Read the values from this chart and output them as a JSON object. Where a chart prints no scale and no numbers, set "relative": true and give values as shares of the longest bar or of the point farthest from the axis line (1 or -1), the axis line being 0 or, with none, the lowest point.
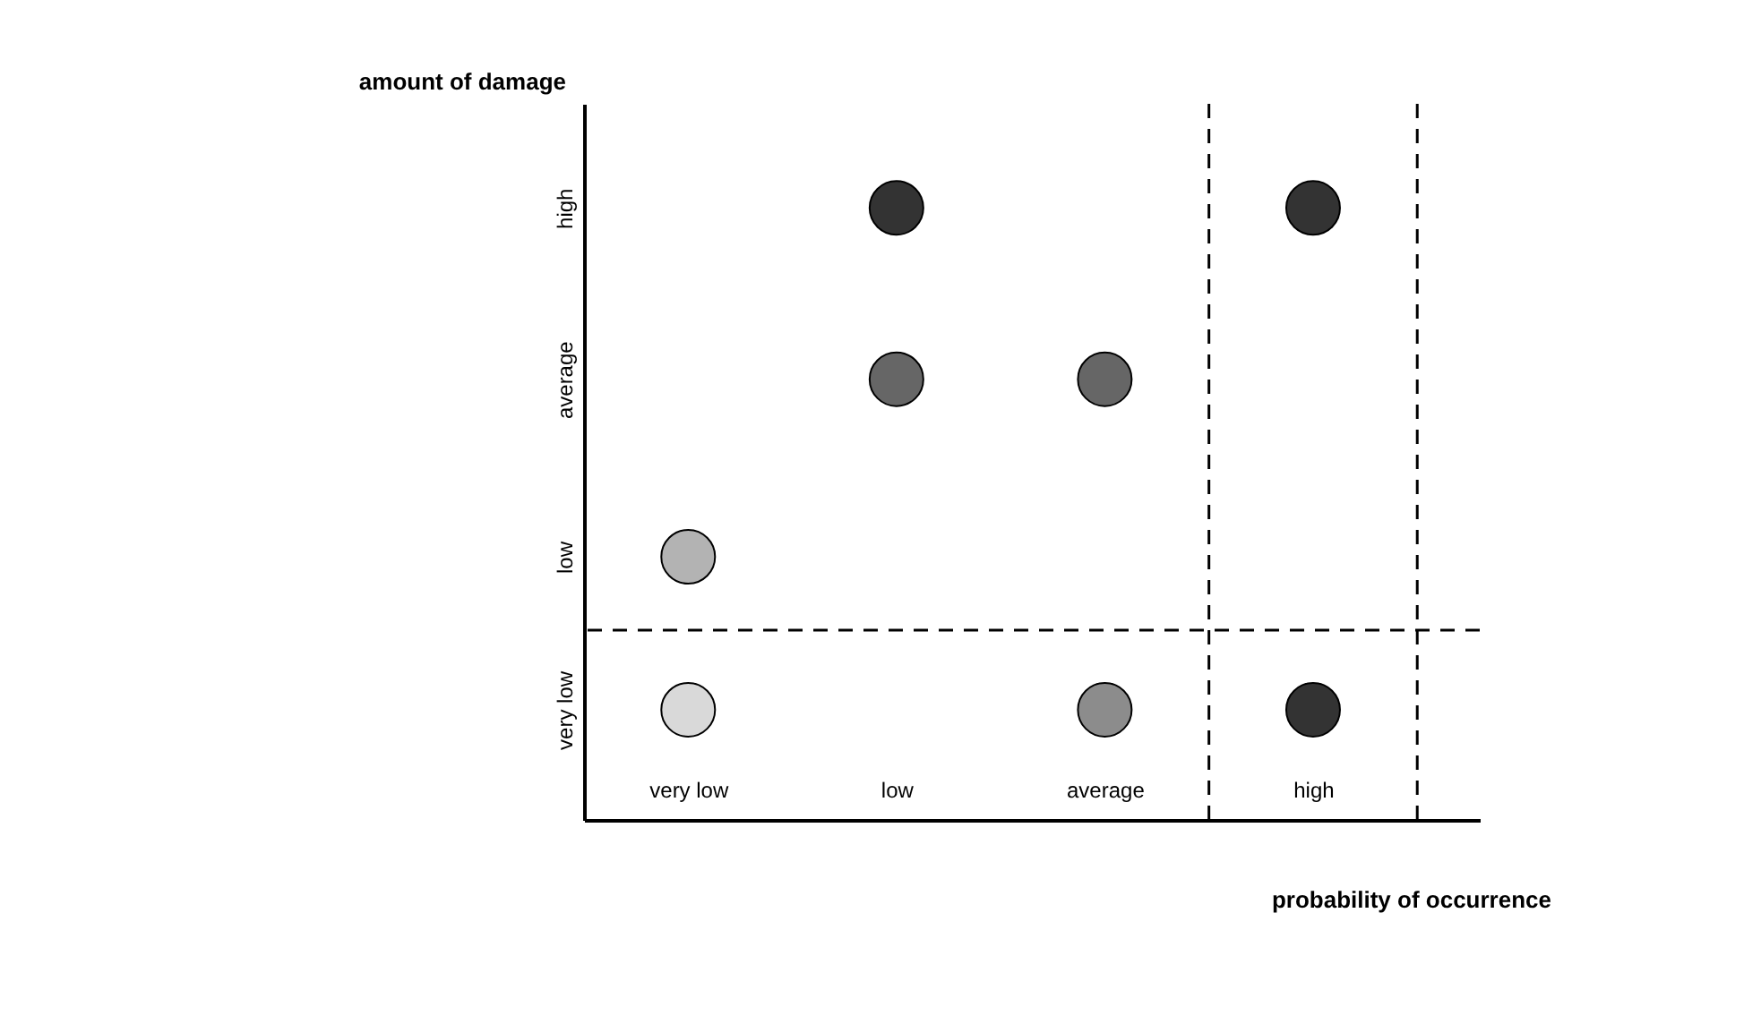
{
  "chart_data": {
    "type": "scatter",
    "xlabel": "probability of occurrence",
    "ylabel": "amount of damage",
    "categories": [
      "very low",
      "low",
      "average",
      "high"
    ],
    "y_categories": [
      "high",
      "average",
      "low",
      "very low"
    ],
    "relative": true,
    "series": [
      {
        "values": [
          0.18,
          0.72,
          0.72,
          0.18
        ],
        "colors": [
          "#d9d9d9",
          "#666666",
          "#666666",
          "#333333"
        ]
      },
      {
        "values": [
          0.43,
          1,
          0.18,
          1
        ],
        "colors": [
          "#b3b3b3",
          "#333333",
          "#8c8c8c",
          "#333333"
        ]
      }
    ],
    "ref_lines": [
      {
        "axis": "y",
        "value": 0.31,
        "line_style": "dashed"
      }
    ],
    "marker": "circle"
  }
}
